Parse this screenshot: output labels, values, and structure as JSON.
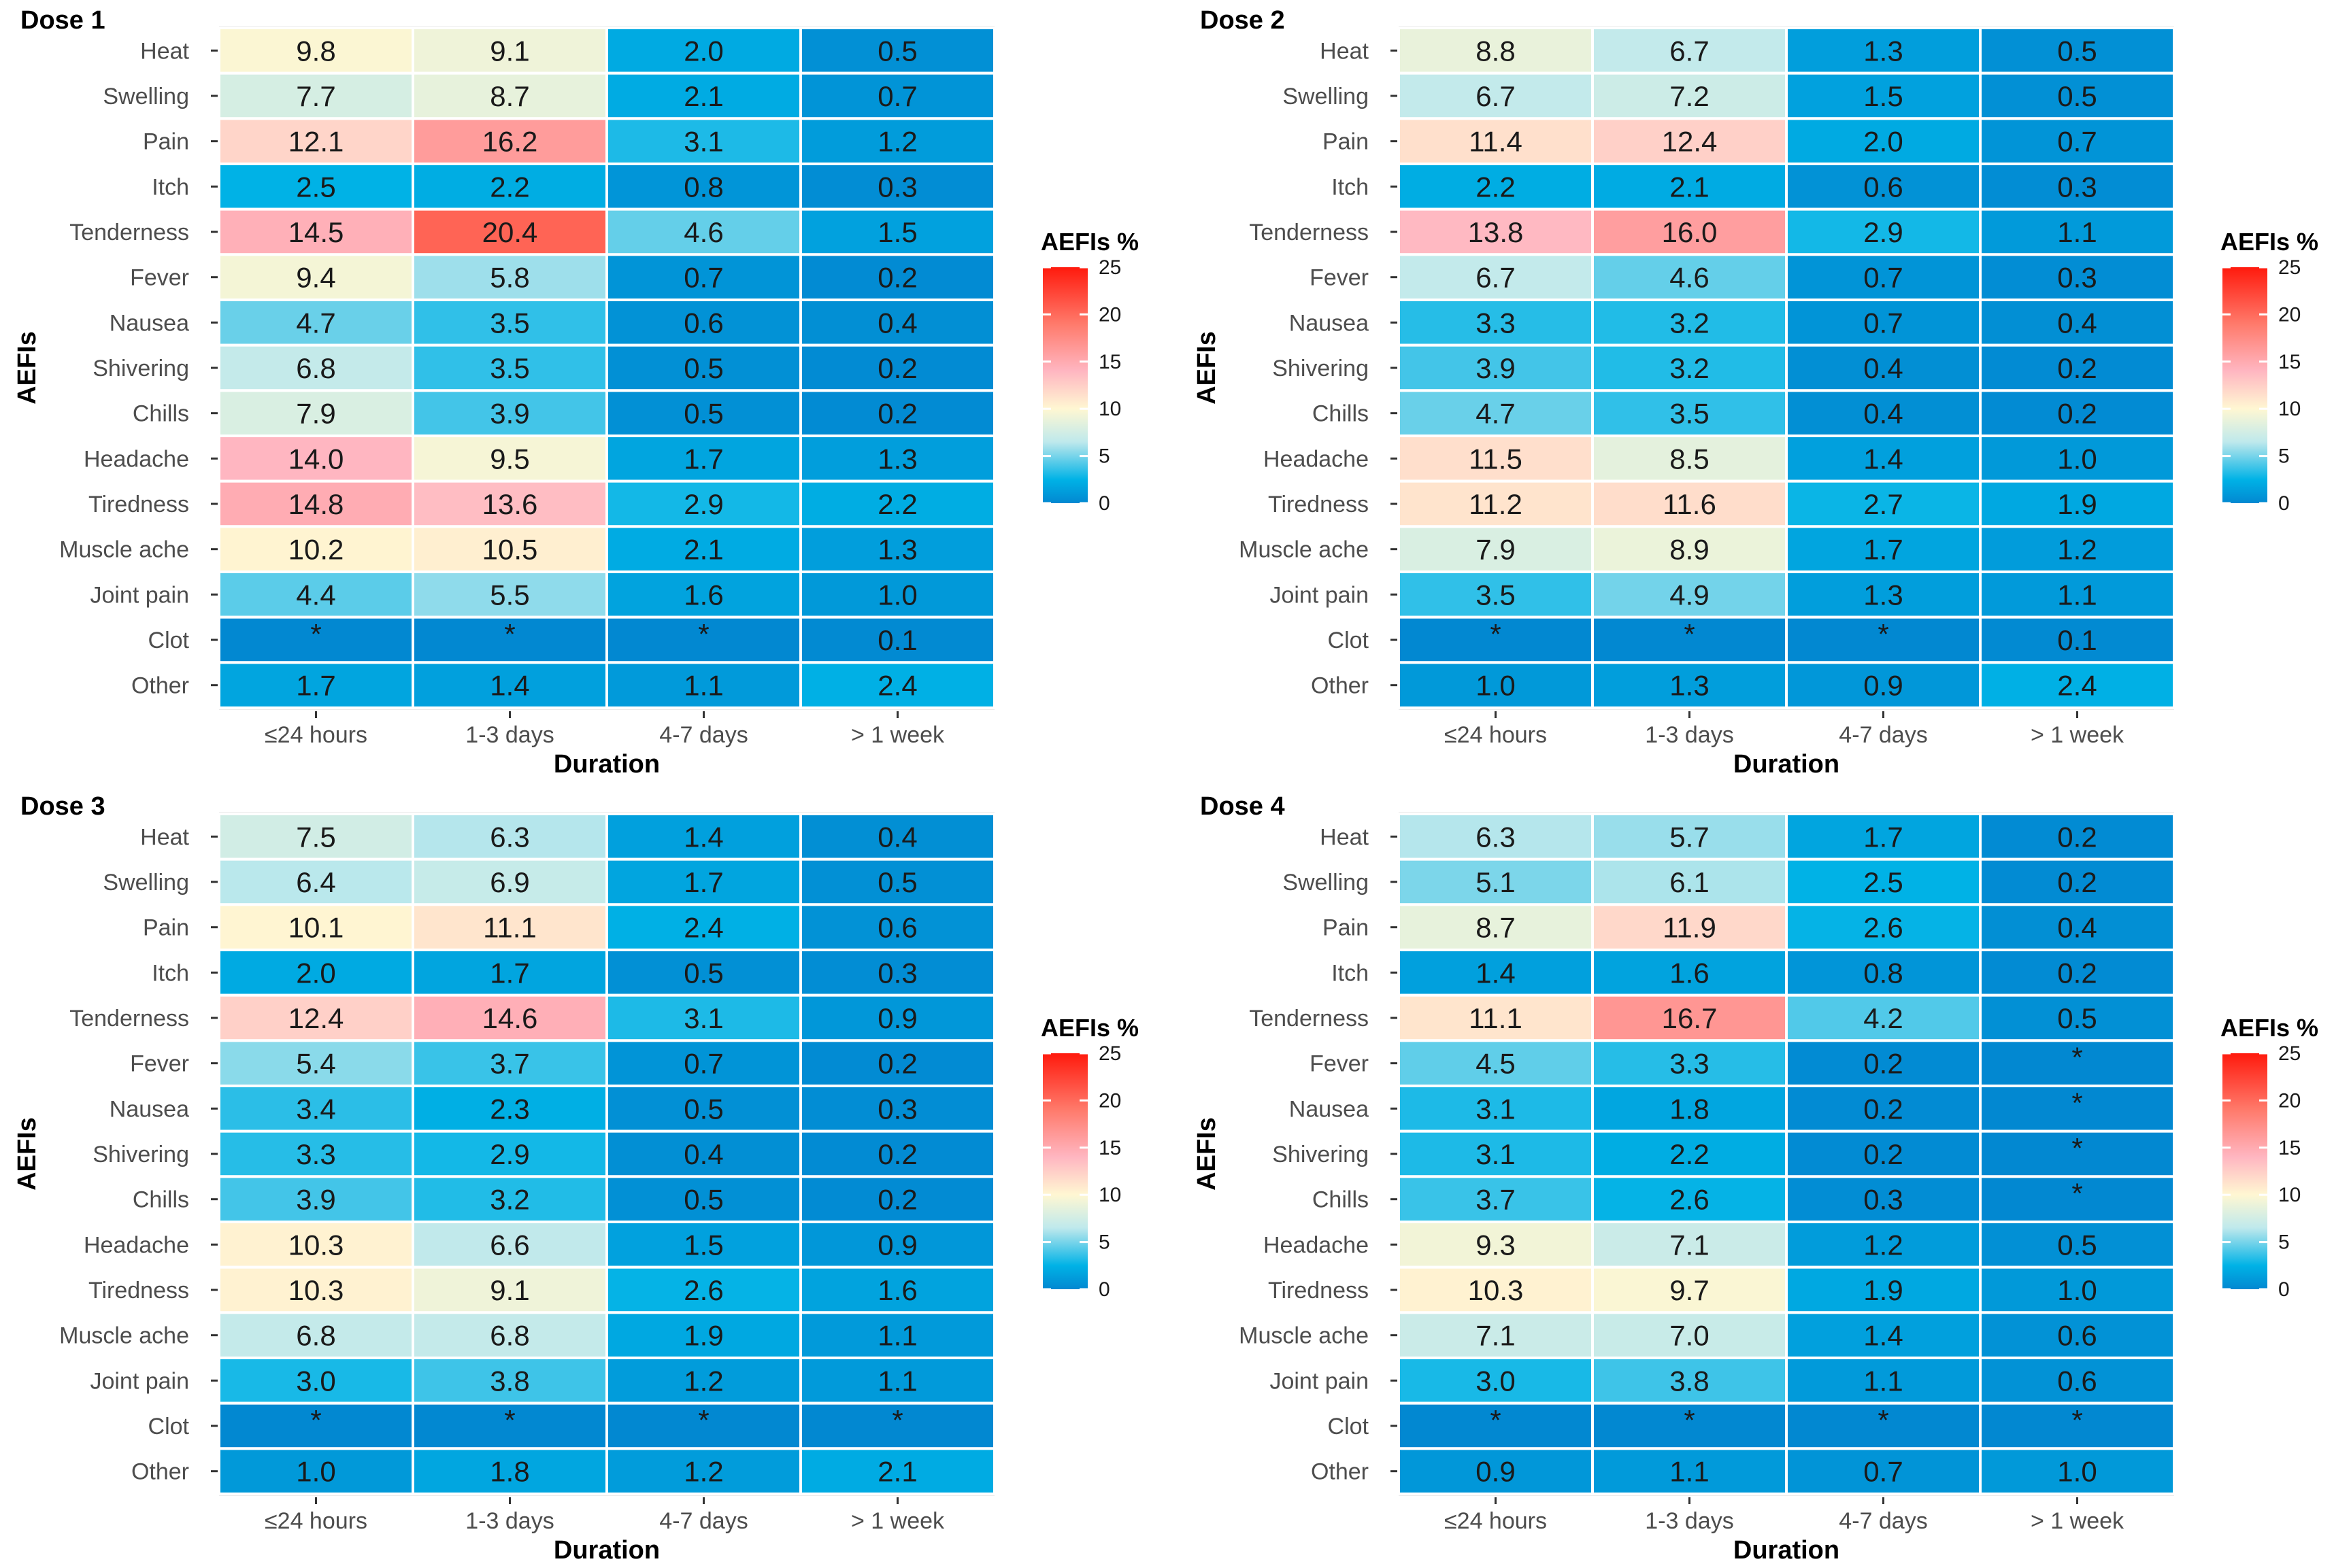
{
  "colors": {
    "panel_background": "#ebebeb",
    "cell_border": "#ffffff",
    "tick_color": "#333333",
    "scale_stops": [
      "#0288d1",
      "#00b2e6",
      "#bfe9ec",
      "#fff7d2",
      "#ffb6c1",
      "#ff7a6b",
      "#ff1a0d"
    ],
    "scale_values": [
      0,
      2.5,
      6.5,
      10,
      14,
      19,
      25
    ]
  },
  "chart_data": [
    {
      "type": "heatmap",
      "title": "Dose 1",
      "xlabel": "Duration",
      "ylabel": "AEFIs",
      "categories": [
        "≤24 hours",
        "1-3 days",
        "4-7 days",
        "> 1 week"
      ],
      "rows": [
        "Heat",
        "Swelling",
        "Pain",
        "Itch",
        "Tenderness",
        "Fever",
        "Nausea",
        "Shivering",
        "Chills",
        "Headache",
        "Tiredness",
        "Muscle ache",
        "Joint pain",
        "Clot",
        "Other"
      ],
      "values": [
        [
          "9.8",
          "9.1",
          "2.0",
          "0.5"
        ],
        [
          "7.7",
          "8.7",
          "2.1",
          "0.7"
        ],
        [
          "12.1",
          "16.2",
          "3.1",
          "1.2"
        ],
        [
          "2.5",
          "2.2",
          "0.8",
          "0.3"
        ],
        [
          "14.5",
          "20.4",
          "4.6",
          "1.5"
        ],
        [
          "9.4",
          "5.8",
          "0.7",
          "0.2"
        ],
        [
          "4.7",
          "3.5",
          "0.6",
          "0.4"
        ],
        [
          "6.8",
          "3.5",
          "0.5",
          "0.2"
        ],
        [
          "7.9",
          "3.9",
          "0.5",
          "0.2"
        ],
        [
          "14.0",
          "9.5",
          "1.7",
          "1.3"
        ],
        [
          "14.8",
          "13.6",
          "2.9",
          "2.2"
        ],
        [
          "10.2",
          "10.5",
          "2.1",
          "1.3"
        ],
        [
          "4.4",
          "5.5",
          "1.6",
          "1.0"
        ],
        [
          "*",
          "*",
          "*",
          "0.1"
        ],
        [
          "1.7",
          "1.4",
          "1.1",
          "2.4"
        ]
      ],
      "legend": {
        "title": "AEFIs %",
        "ticks": [
          "25",
          "20",
          "15",
          "10",
          "5",
          "0"
        ],
        "range": [
          0,
          25
        ]
      }
    },
    {
      "type": "heatmap",
      "title": "Dose 2",
      "xlabel": "Duration",
      "ylabel": "AEFIs",
      "categories": [
        "≤24 hours",
        "1-3 days",
        "4-7 days",
        "> 1 week"
      ],
      "rows": [
        "Heat",
        "Swelling",
        "Pain",
        "Itch",
        "Tenderness",
        "Fever",
        "Nausea",
        "Shivering",
        "Chills",
        "Headache",
        "Tiredness",
        "Muscle ache",
        "Joint pain",
        "Clot",
        "Other"
      ],
      "values": [
        [
          "8.8",
          "6.7",
          "1.3",
          "0.5"
        ],
        [
          "6.7",
          "7.2",
          "1.5",
          "0.5"
        ],
        [
          "11.4",
          "12.4",
          "2.0",
          "0.7"
        ],
        [
          "2.2",
          "2.1",
          "0.6",
          "0.3"
        ],
        [
          "13.8",
          "16.0",
          "2.9",
          "1.1"
        ],
        [
          "6.7",
          "4.6",
          "0.7",
          "0.3"
        ],
        [
          "3.3",
          "3.2",
          "0.7",
          "0.4"
        ],
        [
          "3.9",
          "3.2",
          "0.4",
          "0.2"
        ],
        [
          "4.7",
          "3.5",
          "0.4",
          "0.2"
        ],
        [
          "11.5",
          "8.5",
          "1.4",
          "1.0"
        ],
        [
          "11.2",
          "11.6",
          "2.7",
          "1.9"
        ],
        [
          "7.9",
          "8.9",
          "1.7",
          "1.2"
        ],
        [
          "3.5",
          "4.9",
          "1.3",
          "1.1"
        ],
        [
          "*",
          "*",
          "*",
          "0.1"
        ],
        [
          "1.0",
          "1.3",
          "0.9",
          "2.4"
        ]
      ],
      "legend": {
        "title": "AEFIs %",
        "ticks": [
          "25",
          "20",
          "15",
          "10",
          "5",
          "0"
        ],
        "range": [
          0,
          25
        ]
      }
    },
    {
      "type": "heatmap",
      "title": "Dose 3",
      "xlabel": "Duration",
      "ylabel": "AEFIs",
      "categories": [
        "≤24 hours",
        "1-3 days",
        "4-7 days",
        "> 1 week"
      ],
      "rows": [
        "Heat",
        "Swelling",
        "Pain",
        "Itch",
        "Tenderness",
        "Fever",
        "Nausea",
        "Shivering",
        "Chills",
        "Headache",
        "Tiredness",
        "Muscle ache",
        "Joint pain",
        "Clot",
        "Other"
      ],
      "values": [
        [
          "7.5",
          "6.3",
          "1.4",
          "0.4"
        ],
        [
          "6.4",
          "6.9",
          "1.7",
          "0.5"
        ],
        [
          "10.1",
          "11.1",
          "2.4",
          "0.6"
        ],
        [
          "2.0",
          "1.7",
          "0.5",
          "0.3"
        ],
        [
          "12.4",
          "14.6",
          "3.1",
          "0.9"
        ],
        [
          "5.4",
          "3.7",
          "0.7",
          "0.2"
        ],
        [
          "3.4",
          "2.3",
          "0.5",
          "0.3"
        ],
        [
          "3.3",
          "2.9",
          "0.4",
          "0.2"
        ],
        [
          "3.9",
          "3.2",
          "0.5",
          "0.2"
        ],
        [
          "10.3",
          "6.6",
          "1.5",
          "0.9"
        ],
        [
          "10.3",
          "9.1",
          "2.6",
          "1.6"
        ],
        [
          "6.8",
          "6.8",
          "1.9",
          "1.1"
        ],
        [
          "3.0",
          "3.8",
          "1.2",
          "1.1"
        ],
        [
          "*",
          "*",
          "*",
          "*"
        ],
        [
          "1.0",
          "1.8",
          "1.2",
          "2.1"
        ]
      ],
      "legend": {
        "title": "AEFIs %",
        "ticks": [
          "25",
          "20",
          "15",
          "10",
          "5",
          "0"
        ],
        "range": [
          0,
          25
        ]
      }
    },
    {
      "type": "heatmap",
      "title": "Dose 4",
      "xlabel": "Duration",
      "ylabel": "AEFIs",
      "categories": [
        "≤24 hours",
        "1-3 days",
        "4-7 days",
        "> 1 week"
      ],
      "rows": [
        "Heat",
        "Swelling",
        "Pain",
        "Itch",
        "Tenderness",
        "Fever",
        "Nausea",
        "Shivering",
        "Chills",
        "Headache",
        "Tiredness",
        "Muscle ache",
        "Joint pain",
        "Clot",
        "Other"
      ],
      "values": [
        [
          "6.3",
          "5.7",
          "1.7",
          "0.2"
        ],
        [
          "5.1",
          "6.1",
          "2.5",
          "0.2"
        ],
        [
          "8.7",
          "11.9",
          "2.6",
          "0.4"
        ],
        [
          "1.4",
          "1.6",
          "0.8",
          "0.2"
        ],
        [
          "11.1",
          "16.7",
          "4.2",
          "0.5"
        ],
        [
          "4.5",
          "3.3",
          "0.2",
          "*"
        ],
        [
          "3.1",
          "1.8",
          "0.2",
          "*"
        ],
        [
          "3.1",
          "2.2",
          "0.2",
          "*"
        ],
        [
          "3.7",
          "2.6",
          "0.3",
          "*"
        ],
        [
          "9.3",
          "7.1",
          "1.2",
          "0.5"
        ],
        [
          "10.3",
          "9.7",
          "1.9",
          "1.0"
        ],
        [
          "7.1",
          "7.0",
          "1.4",
          "0.6"
        ],
        [
          "3.0",
          "3.8",
          "1.1",
          "0.6"
        ],
        [
          "*",
          "*",
          "*",
          "*"
        ],
        [
          "0.9",
          "1.1",
          "0.7",
          "1.0"
        ]
      ],
      "legend": {
        "title": "AEFIs %",
        "ticks": [
          "25",
          "20",
          "15",
          "10",
          "5",
          "0"
        ],
        "range": [
          0,
          25
        ]
      }
    }
  ]
}
